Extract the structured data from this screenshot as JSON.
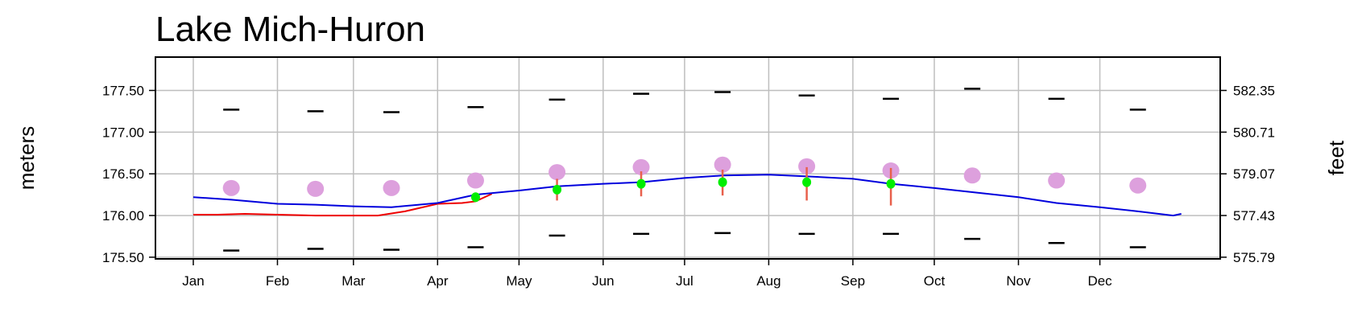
{
  "chart_data": {
    "type": "line",
    "title": "Lake Mich-Huron",
    "ylabel": "meters",
    "y2label": "feet",
    "ylim": [
      175.48,
      177.9
    ],
    "yticks": [
      "175.50",
      "176.00",
      "176.50",
      "177.00",
      "177.50"
    ],
    "y2ticks": [
      "575.79",
      "577.43",
      "579.07",
      "580.71",
      "582.35"
    ],
    "xticks": [
      "Jan",
      "Feb",
      "Mar",
      "Apr",
      "May",
      "Jun",
      "Jul",
      "Aug",
      "Sep",
      "Oct",
      "Nov",
      "Dec"
    ],
    "grid": true,
    "colors": {
      "current": "#0000dd",
      "previous": "#ee0000",
      "average": "#dda0dd",
      "forecast": "#00ee00",
      "forecast_range": "#e8604c",
      "extremes": "#000000",
      "grid": "#bebebe"
    },
    "monthly_mid": [
      "01-15",
      "02-15",
      "03-15",
      "04-15",
      "05-15",
      "06-15",
      "07-15",
      "08-15",
      "09-15",
      "10-15",
      "11-15",
      "12-15"
    ],
    "record_max": [
      177.27,
      177.25,
      177.24,
      177.3,
      177.39,
      177.46,
      177.48,
      177.44,
      177.4,
      177.52,
      177.4,
      177.27
    ],
    "record_min": [
      175.58,
      175.6,
      175.59,
      175.62,
      175.76,
      175.78,
      175.79,
      175.78,
      175.78,
      175.72,
      175.67,
      175.62
    ],
    "long_term_average": [
      176.33,
      176.32,
      176.33,
      176.42,
      176.52,
      176.58,
      176.61,
      176.59,
      176.54,
      176.48,
      176.42,
      176.36
    ],
    "forecast": [
      {
        "date": "04-15",
        "mean": 176.22,
        "low": 176.22,
        "high": 176.22
      },
      {
        "date": "05-15",
        "mean": 176.31,
        "low": 176.18,
        "high": 176.44
      },
      {
        "date": "06-15",
        "mean": 176.38,
        "low": 176.23,
        "high": 176.53
      },
      {
        "date": "07-15",
        "mean": 176.4,
        "low": 176.24,
        "high": 176.55
      },
      {
        "date": "08-15",
        "mean": 176.4,
        "low": 176.18,
        "high": 176.58
      },
      {
        "date": "09-15",
        "mean": 176.38,
        "low": 176.12,
        "high": 176.57
      }
    ],
    "series": [
      {
        "key": "previous",
        "points": [
          [
            "01-01",
            176.01
          ],
          [
            "01-10",
            176.01
          ],
          [
            "01-20",
            176.02
          ],
          [
            "02-01",
            176.01
          ],
          [
            "02-15",
            176.0
          ],
          [
            "03-01",
            176.0
          ],
          [
            "03-10",
            176.0
          ],
          [
            "03-20",
            176.05
          ],
          [
            "04-01",
            176.14
          ],
          [
            "04-10",
            176.15
          ],
          [
            "04-15",
            176.17
          ],
          [
            "04-21",
            176.26
          ]
        ]
      },
      {
        "key": "current",
        "points": [
          [
            "01-01",
            176.22
          ],
          [
            "01-15",
            176.19
          ],
          [
            "02-01",
            176.14
          ],
          [
            "02-15",
            176.13
          ],
          [
            "03-01",
            176.11
          ],
          [
            "03-15",
            176.1
          ],
          [
            "04-01",
            176.15
          ],
          [
            "04-15",
            176.25
          ],
          [
            "05-01",
            176.3
          ],
          [
            "05-15",
            176.35
          ],
          [
            "06-01",
            176.38
          ],
          [
            "06-15",
            176.4
          ],
          [
            "07-01",
            176.45
          ],
          [
            "07-15",
            176.48
          ],
          [
            "08-01",
            176.49
          ],
          [
            "08-15",
            176.47
          ],
          [
            "09-01",
            176.44
          ],
          [
            "09-15",
            176.38
          ],
          [
            "10-01",
            176.33
          ],
          [
            "10-15",
            176.28
          ],
          [
            "11-01",
            176.22
          ],
          [
            "11-15",
            176.15
          ],
          [
            "12-01",
            176.1
          ],
          [
            "12-15",
            176.05
          ],
          [
            "12-28",
            176.0
          ],
          [
            "12-31",
            176.02
          ]
        ]
      }
    ]
  }
}
